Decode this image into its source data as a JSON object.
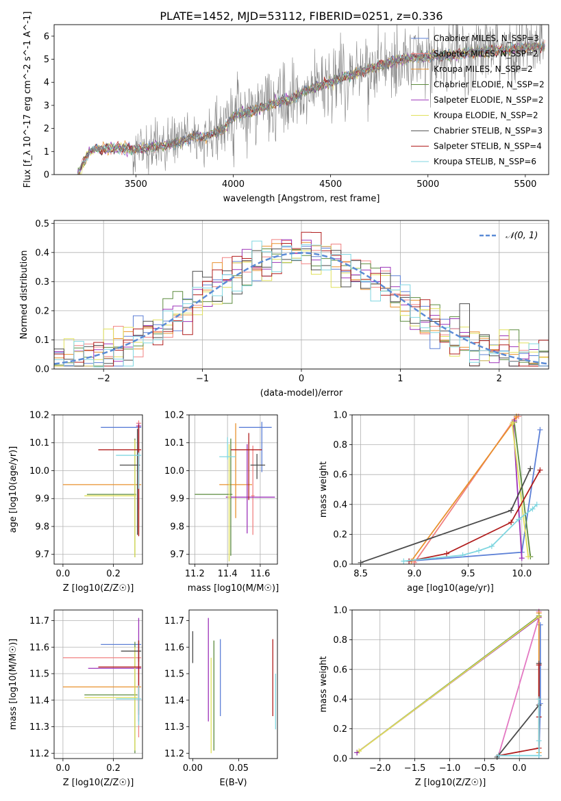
{
  "figure": {
    "title": "PLATE=1452, MJD=53112, FIBERID=0251, z=0.336"
  },
  "colors": {
    "chab_miles": "#5b7fd6",
    "salp_miles": "#f08080",
    "krou_miles": "#e8912d",
    "chab_elodie": "#5a8a3c",
    "salp_elodie": "#9b30b8",
    "krou_elodie": "#e0e05a",
    "chab_stelib": "#4a4a4a",
    "salp_stelib": "#b01c1c",
    "krou_stelib": "#7fd6e0",
    "gaussian": "#5b8bd6",
    "pink": "#e377c2"
  },
  "chart_data": [
    {
      "id": "spectrum",
      "type": "line",
      "title": "PLATE=1452, MJD=53112, FIBERID=0251, z=0.336",
      "xlabel": "wavelength [Angstrom, rest frame]",
      "ylabel": "Flux [f_λ 10^-17 erg cm^-2 s^-1 A^-1]",
      "xlim": [
        3080,
        5620
      ],
      "ylim": [
        0,
        6.5
      ],
      "xticks": [
        "3500",
        "4000",
        "4500",
        "5000",
        "5500"
      ],
      "yticks": [
        "0",
        "1",
        "2",
        "3",
        "4",
        "5",
        "6"
      ],
      "grid": false,
      "legend_position": "top-right",
      "continuum": {
        "x": [
          3200,
          3260,
          3300,
          3400,
          3500,
          3600,
          3700,
          3750,
          3800,
          3850,
          3900,
          3950,
          4000,
          4100,
          4200,
          4300,
          4400,
          4500,
          4600,
          4700,
          4800,
          4900,
          5000,
          5100,
          5200,
          5300,
          5400,
          5500,
          5600
        ],
        "y": [
          0.6,
          1.0,
          1.1,
          1.15,
          1.1,
          1.2,
          1.35,
          1.5,
          1.7,
          1.6,
          1.8,
          1.95,
          2.55,
          2.75,
          3.05,
          3.3,
          3.75,
          4.0,
          4.3,
          4.6,
          4.85,
          5.05,
          5.1,
          5.15,
          5.25,
          5.35,
          5.4,
          5.5,
          5.55
        ]
      },
      "series": [
        {
          "name": "Chabrier MILES, N_SSP=3",
          "color_key": "chab_miles"
        },
        {
          "name": "Salpeter MILES, N_SSP=2",
          "color_key": "salp_miles"
        },
        {
          "name": "Kroupa MILES, N_SSP=2",
          "color_key": "krou_miles"
        },
        {
          "name": "Chabrier ELODIE, N_SSP=2",
          "color_key": "chab_elodie"
        },
        {
          "name": "Salpeter ELODIE, N_SSP=2",
          "color_key": "salp_elodie"
        },
        {
          "name": "Kroupa ELODIE, N_SSP=2",
          "color_key": "krou_elodie"
        },
        {
          "name": "Chabrier STELIB, N_SSP=3",
          "color_key": "chab_stelib"
        },
        {
          "name": "Salpeter STELIB, N_SSP=4",
          "color_key": "salp_stelib"
        },
        {
          "name": "Kroupa STELIB, N_SSP=6",
          "color_key": "krou_stelib"
        }
      ]
    },
    {
      "id": "residuals",
      "type": "line",
      "xlabel": "(data-model)/error",
      "ylabel": "Normed distribution",
      "xlim": [
        -2.5,
        2.5
      ],
      "ylim": [
        0,
        0.51
      ],
      "xticks": [
        "−2",
        "−1",
        "0",
        "1",
        "2"
      ],
      "yticks": [
        "0.0",
        "0.1",
        "0.2",
        "0.3",
        "0.4",
        "0.5"
      ],
      "grid": true,
      "legend_position": "top-right",
      "legend": "𝒩(0, 1)",
      "bin_width": 0.1
    },
    {
      "id": "age_vs_Z",
      "type": "scatter",
      "xlabel": "Z [log10(Z/Z☉)]",
      "ylabel": "age [log10(age/yr)]",
      "xlim": [
        -0.035,
        0.315
      ],
      "ylim": [
        9.665,
        10.2
      ],
      "xticks": [
        "0.0",
        "0.2"
      ],
      "yticks": [
        "9.7",
        "9.8",
        "9.9",
        "10.0",
        "10.1",
        "10.2"
      ],
      "grid": true,
      "points": [
        {
          "color_key": "chab_miles",
          "x": 0.3,
          "y": 10.155,
          "xerr": [
            0.15,
            0.01
          ],
          "yerr": [
            0.16,
            0.01
          ]
        },
        {
          "color_key": "salp_miles",
          "x": 0.3,
          "y": 10.17,
          "xerr": [
            0.01,
            0.01
          ],
          "yerr": [
            0.4,
            0.01
          ]
        },
        {
          "color_key": "krou_miles",
          "x": 0.3,
          "y": 9.95,
          "xerr": [
            0.3,
            0.01
          ],
          "yerr": [
            0.18,
            0.22
          ]
        },
        {
          "color_key": "chab_elodie",
          "x": 0.285,
          "y": 9.915,
          "xerr": [
            0.19,
            0.005
          ],
          "yerr": [
            0.225,
            0.2
          ]
        },
        {
          "color_key": "salp_elodie",
          "x": 0.3,
          "y": 10.16,
          "xerr": [
            0.01,
            0.01
          ],
          "yerr": [
            0.3,
            0.01
          ]
        },
        {
          "color_key": "krou_elodie",
          "x": 0.285,
          "y": 9.91,
          "xerr": [
            0.2,
            0.005
          ],
          "yerr": [
            0.22,
            0.2
          ]
        },
        {
          "color_key": "chab_stelib",
          "x": 0.295,
          "y": 10.02,
          "xerr": [
            0.07,
            0.01
          ],
          "yerr": [
            0.25,
            0.13
          ]
        },
        {
          "color_key": "salp_stelib",
          "x": 0.3,
          "y": 10.075,
          "xerr": [
            0.16,
            0.01
          ],
          "yerr": [
            0.31,
            0.09
          ]
        },
        {
          "color_key": "krou_stelib",
          "x": 0.3,
          "y": 10.055,
          "xerr": [
            0.09,
            0.01
          ],
          "yerr": [
            0.12,
            0.01
          ]
        }
      ]
    },
    {
      "id": "age_vs_mass",
      "type": "scatter",
      "xlabel": "mass [log10(M/M☉)]",
      "ylabel": "",
      "xlim": [
        11.165,
        11.705
      ],
      "ylim": [
        9.665,
        10.2
      ],
      "xticks": [
        "11.2",
        "11.4",
        "11.6"
      ],
      "yticks": [
        "9.7",
        "9.8",
        "9.9",
        "10.0",
        "10.1",
        "10.2"
      ],
      "grid": true,
      "points": [
        {
          "color_key": "chab_miles",
          "x": 11.61,
          "y": 10.155,
          "xerr": [
            0.14,
            0.06
          ],
          "yerr": [
            0.16,
            0.02
          ]
        },
        {
          "color_key": "salp_miles",
          "x": 11.555,
          "y": 9.91,
          "xerr": [
            0.01,
            0.01
          ],
          "yerr": [
            0.14,
            0.18
          ]
        },
        {
          "color_key": "krou_miles",
          "x": 11.45,
          "y": 9.95,
          "xerr": [
            0.1,
            0.1
          ],
          "yerr": [
            0.12,
            0.22
          ]
        },
        {
          "color_key": "chab_elodie",
          "x": 11.42,
          "y": 9.915,
          "xerr": [
            0.22,
            0.01
          ],
          "yerr": [
            0.22,
            0.2
          ]
        },
        {
          "color_key": "salp_elodie",
          "x": 11.52,
          "y": 9.905,
          "xerr": [
            0.13,
            0.17
          ],
          "yerr": [
            0.13,
            0.19
          ]
        },
        {
          "color_key": "krou_elodie",
          "x": 11.41,
          "y": 9.905,
          "xerr": [
            0.01,
            0.01
          ],
          "yerr": [
            0.23,
            0.19
          ]
        },
        {
          "color_key": "chab_stelib",
          "x": 11.58,
          "y": 10.02,
          "xerr": [
            0.04,
            0.05
          ],
          "yerr": [
            0.05,
            0.04
          ]
        },
        {
          "color_key": "salp_stelib",
          "x": 11.53,
          "y": 10.075,
          "xerr": [
            0.11,
            0.08
          ],
          "yerr": [
            0.18,
            0.06
          ]
        },
        {
          "color_key": "krou_stelib",
          "x": 11.4,
          "y": 10.05,
          "xerr": [
            0.05,
            0.05
          ],
          "yerr": [
            0.01,
            0.07
          ]
        }
      ]
    },
    {
      "id": "massweight_vs_age",
      "type": "line",
      "xlabel": "age [log10(age/yr)]",
      "ylabel": "mass weight",
      "xlim": [
        8.42,
        10.25
      ],
      "ylim": [
        0,
        1.0
      ],
      "xticks": [
        "8.5",
        "9.0",
        "9.5",
        "10.0"
      ],
      "yticks": [
        "0.0",
        "0.2",
        "0.4",
        "0.6",
        "0.8",
        "1.0"
      ],
      "grid": true,
      "series": [
        {
          "color_key": "chab_miles",
          "x": [
            8.95,
            10.0,
            10.17
          ],
          "y": [
            0.02,
            0.08,
            0.9
          ]
        },
        {
          "color_key": "salp_miles",
          "x": [
            9.0,
            9.93,
            9.97
          ],
          "y": [
            0.01,
            0.97,
            0.99
          ]
        },
        {
          "color_key": "krou_miles",
          "x": [
            8.97,
            9.92,
            9.95
          ],
          "y": [
            0.02,
            0.95,
            0.99
          ]
        },
        {
          "color_key": "chab_elodie",
          "x": [
            10.08,
            9.93,
            9.93
          ],
          "y": [
            0.05,
            0.95,
            0.96
          ]
        },
        {
          "color_key": "salp_elodie",
          "x": [
            10.0,
            9.92,
            9.93
          ],
          "y": [
            0.04,
            0.95,
            0.96
          ]
        },
        {
          "color_key": "krou_elodie",
          "x": [
            10.06,
            9.91,
            9.92
          ],
          "y": [
            0.05,
            0.94,
            0.95
          ]
        },
        {
          "color_key": "chab_stelib",
          "x": [
            8.5,
            9.9,
            10.08
          ],
          "y": [
            0.01,
            0.36,
            0.64
          ]
        },
        {
          "color_key": "salp_stelib",
          "x": [
            8.95,
            9.3,
            9.9,
            10.17
          ],
          "y": [
            0.02,
            0.07,
            0.28,
            0.63
          ]
        },
        {
          "color_key": "krou_stelib",
          "x": [
            8.9,
            9.45,
            9.6,
            9.72,
            9.97,
            10.1,
            10.14
          ],
          "y": [
            0.02,
            0.06,
            0.09,
            0.12,
            0.3,
            0.37,
            0.4
          ]
        }
      ]
    },
    {
      "id": "mass_vs_Z",
      "type": "scatter",
      "xlabel": "Z [log10(Z/Z☉)]",
      "ylabel": "mass [log10(M/M☉)]",
      "xlim": [
        -0.035,
        0.315
      ],
      "ylim": [
        11.18,
        11.74
      ],
      "xticks": [
        "0.0",
        "0.2"
      ],
      "yticks": [
        "11.2",
        "11.3",
        "11.4",
        "11.5",
        "11.6",
        "11.7"
      ],
      "grid": true,
      "points": [
        {
          "color_key": "chab_miles",
          "x": 0.3,
          "y": 11.61,
          "xerr": [
            0.15,
            0.01
          ],
          "yerr": [
            0.04,
            0.01
          ]
        },
        {
          "color_key": "salp_miles",
          "x": 0.3,
          "y": 11.56,
          "xerr": [
            0.3,
            0.01
          ],
          "yerr": [
            0.3,
            0.01
          ]
        },
        {
          "color_key": "krou_miles",
          "x": 0.3,
          "y": 11.45,
          "xerr": [
            0.3,
            0.01
          ],
          "yerr": [
            0.09,
            0.01
          ]
        },
        {
          "color_key": "chab_elodie",
          "x": 0.285,
          "y": 11.42,
          "xerr": [
            0.2,
            0.01
          ],
          "yerr": [
            0.22,
            0.2
          ]
        },
        {
          "color_key": "salp_elodie",
          "x": 0.3,
          "y": 11.52,
          "xerr": [
            0.2,
            0.01
          ],
          "yerr": [
            0.2,
            0.19
          ]
        },
        {
          "color_key": "krou_elodie",
          "x": 0.285,
          "y": 11.41,
          "xerr": [
            0.2,
            0.01
          ],
          "yerr": [
            0.2,
            0.19
          ]
        },
        {
          "color_key": "chab_stelib",
          "x": 0.3,
          "y": 11.585,
          "xerr": [
            0.07,
            0.01
          ],
          "yerr": [
            0.04,
            0.04
          ]
        },
        {
          "color_key": "salp_stelib",
          "x": 0.3,
          "y": 11.525,
          "xerr": [
            0.16,
            0.01
          ],
          "yerr": [
            0.18,
            0.1
          ]
        },
        {
          "color_key": "krou_stelib",
          "x": 0.3,
          "y": 11.405,
          "xerr": [
            0.09,
            0.01
          ],
          "yerr": [
            0.1,
            0.05
          ]
        }
      ]
    },
    {
      "id": "mass_vs_ebv",
      "type": "scatter",
      "xlabel": "E(B-V)",
      "ylabel": "",
      "xlim": [
        -0.004,
        0.092
      ],
      "ylim": [
        11.18,
        11.74
      ],
      "xticks": [
        "0.00",
        "0.05"
      ],
      "yticks": [
        "11.2",
        "11.3",
        "11.4",
        "11.5",
        "11.6",
        "11.7"
      ],
      "grid": false,
      "segments": [
        {
          "color_key": "chab_stelib",
          "x": 0.0,
          "y1": 11.54,
          "y2": 11.66
        },
        {
          "color_key": "salp_elodie",
          "x": 0.017,
          "y1": 11.32,
          "y2": 11.71
        },
        {
          "color_key": "krou_elodie",
          "x": 0.02,
          "y1": 11.2,
          "y2": 11.56
        },
        {
          "color_key": "chab_elodie",
          "x": 0.023,
          "y1": 11.21,
          "y2": 11.625
        },
        {
          "color_key": "chab_miles",
          "x": 0.03,
          "y1": 11.34,
          "y2": 11.63
        },
        {
          "color_key": "salp_stelib",
          "x": 0.087,
          "y1": 11.34,
          "y2": 11.63
        },
        {
          "color_key": "krou_stelib",
          "x": 0.09,
          "y1": 11.29,
          "y2": 11.5
        }
      ]
    },
    {
      "id": "massweight_vs_Z",
      "type": "line",
      "xlabel": "Z [log10(Z/Z☉)]",
      "ylabel": "mass weight",
      "xlim": [
        -2.4,
        0.42
      ],
      "ylim": [
        0,
        1.0
      ],
      "xticks": [
        "−2.0",
        "−1.5",
        "−1.0",
        "−0.5",
        "0.0"
      ],
      "yticks": [
        "0.0",
        "0.2",
        "0.4",
        "0.6",
        "0.8",
        "1.0"
      ],
      "grid": true,
      "series": [
        {
          "color_key": "chab_miles",
          "x": [
            0.28,
            0.3,
            0.3
          ],
          "y": [
            0.02,
            0.37,
            0.9
          ]
        },
        {
          "color_key": "pink",
          "x": [
            -0.3,
            0.28,
            0.28
          ],
          "y": [
            0.02,
            0.95,
            0.99
          ]
        },
        {
          "color_key": "krou_miles",
          "x": [
            0.28,
            0.28
          ],
          "y": [
            0.04,
            0.98
          ]
        },
        {
          "color_key": "chab_elodie",
          "x": [
            -2.33,
            0.28
          ],
          "y": [
            0.04,
            0.96
          ]
        },
        {
          "color_key": "salp_elodie",
          "x": [
            -2.33,
            0.28
          ],
          "y": [
            0.04,
            0.95
          ]
        },
        {
          "color_key": "krou_elodie",
          "x": [
            -2.3,
            0.28
          ],
          "y": [
            0.05,
            0.955
          ]
        },
        {
          "color_key": "chab_stelib",
          "x": [
            -0.32,
            0.28,
            0.28
          ],
          "y": [
            0.01,
            0.36,
            0.64
          ]
        },
        {
          "color_key": "salp_stelib",
          "x": [
            -0.3,
            0.28,
            0.28,
            0.28
          ],
          "y": [
            0.02,
            0.07,
            0.28,
            0.63
          ]
        },
        {
          "color_key": "krou_stelib",
          "x": [
            -0.3,
            0.28,
            0.28,
            0.28
          ],
          "y": [
            0.02,
            0.02,
            0.12,
            0.4
          ]
        }
      ]
    }
  ]
}
